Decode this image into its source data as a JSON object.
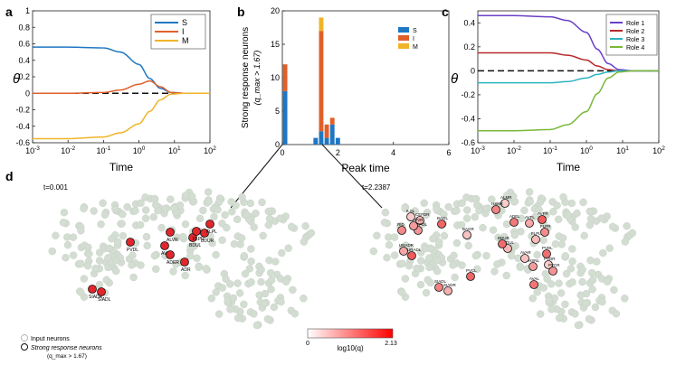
{
  "chart_data": [
    {
      "panel": "a",
      "type": "line",
      "xscale": "log",
      "xlim": [
        0.001,
        100
      ],
      "ylim": [
        -0.6,
        1
      ],
      "xlabel": "Time",
      "ylabel": "θ",
      "xticks": [
        "10^{-3}",
        "10^{-2}",
        "10^{-1}",
        "10^{0}",
        "10^{1}",
        "10^{2}"
      ],
      "yticks": [
        "-0.6",
        "-0.4",
        "-0.2",
        "0",
        "0.2",
        "0.4",
        "0.6",
        "0.8",
        "1"
      ],
      "legend_position": "top-right",
      "series": [
        {
          "name": "S",
          "color": "#1f77c4",
          "x": [
            0.001,
            0.01,
            0.1,
            0.3,
            1,
            2,
            4,
            8,
            20,
            100
          ],
          "y": [
            0.56,
            0.56,
            0.55,
            0.5,
            0.35,
            0.18,
            0.06,
            0.01,
            0,
            0
          ]
        },
        {
          "name": "I",
          "color": "#e0602a",
          "x": [
            0.001,
            0.01,
            0.1,
            0.3,
            1,
            2,
            4,
            8,
            20,
            100
          ],
          "y": [
            0,
            0,
            0.01,
            0.04,
            0.11,
            0.15,
            0.08,
            0.01,
            0,
            0
          ]
        },
        {
          "name": "M",
          "color": "#f0b429",
          "x": [
            0.001,
            0.01,
            0.1,
            0.3,
            1,
            2,
            4,
            8,
            20,
            100
          ],
          "y": [
            -0.55,
            -0.55,
            -0.53,
            -0.48,
            -0.37,
            -0.22,
            -0.08,
            -0.01,
            0,
            0
          ]
        }
      ]
    },
    {
      "panel": "b",
      "type": "bar",
      "stacked": true,
      "xlim": [
        0,
        6
      ],
      "ylim": [
        0,
        20
      ],
      "xlabel": "Peak time",
      "ylabel": "Strong response neurons",
      "ylabel2": "(q_max > 1.67)",
      "xticks": [
        "0",
        "2",
        "4",
        "6"
      ],
      "yticks": [
        "0",
        "5",
        "10",
        "15",
        "20"
      ],
      "legend_position": "top-right",
      "series_names": [
        "S",
        "I",
        "M"
      ],
      "series_colors": [
        "#1f77c4",
        "#e0602a",
        "#f0b429"
      ],
      "bars": [
        {
          "x": 0.1,
          "S": 8,
          "I": 4,
          "M": 0
        },
        {
          "x": 1.2,
          "S": 1,
          "I": 0,
          "M": 0
        },
        {
          "x": 1.4,
          "S": 2,
          "I": 15,
          "M": 2
        },
        {
          "x": 1.6,
          "S": 1,
          "I": 2,
          "M": 0
        },
        {
          "x": 1.8,
          "S": 3,
          "I": 1,
          "M": 0
        },
        {
          "x": 2.0,
          "S": 1,
          "I": 0,
          "M": 0
        }
      ]
    },
    {
      "panel": "c",
      "type": "line",
      "xscale": "log",
      "xlim": [
        0.001,
        100
      ],
      "ylim": [
        -0.6,
        0.5
      ],
      "xlabel": "Time",
      "ylabel": "θ",
      "xticks": [
        "10^{-3}",
        "10^{-2}",
        "10^{-1}",
        "10^{0}",
        "10^{1}",
        "10^{2}"
      ],
      "yticks": [
        "-0.6",
        "-0.4",
        "-0.2",
        "0",
        "0.2",
        "0.4"
      ],
      "legend_position": "top-right",
      "series": [
        {
          "name": "Role 1",
          "color": "#6a3fc8",
          "x": [
            0.001,
            0.01,
            0.1,
            0.3,
            1,
            2,
            4,
            8,
            20,
            100
          ],
          "y": [
            0.46,
            0.46,
            0.45,
            0.42,
            0.32,
            0.18,
            0.06,
            0.01,
            0,
            0
          ]
        },
        {
          "name": "Role 2",
          "color": "#b8282b",
          "x": [
            0.001,
            0.01,
            0.1,
            0.3,
            1,
            2,
            4,
            8,
            20,
            100
          ],
          "y": [
            0.15,
            0.15,
            0.15,
            0.13,
            0.09,
            0.04,
            0.01,
            0,
            0,
            0
          ]
        },
        {
          "name": "Role 3",
          "color": "#2ab3c0",
          "x": [
            0.001,
            0.01,
            0.1,
            0.3,
            1,
            2,
            4,
            8,
            20,
            100
          ],
          "y": [
            -0.1,
            -0.1,
            -0.1,
            -0.09,
            -0.06,
            -0.03,
            -0.01,
            0,
            0,
            0
          ]
        },
        {
          "name": "Role 4",
          "color": "#79b83a",
          "x": [
            0.001,
            0.01,
            0.1,
            0.3,
            1,
            2,
            4,
            8,
            20,
            100
          ],
          "y": [
            -0.5,
            -0.5,
            -0.49,
            -0.45,
            -0.34,
            -0.19,
            -0.06,
            -0.01,
            0,
            0
          ]
        }
      ]
    },
    {
      "panel": "d",
      "type": "scatter",
      "time_left": "t=0.001",
      "time_right": "t=2.2387",
      "colorbar_min": "0",
      "colorbar_max": "2.13",
      "colorbar_label": "log10(q)",
      "legend_input": "Input neurons",
      "legend_strong": "Strong response neurons",
      "legend_strong2": "(q_max > 1.67)",
      "left_highlight_labels": [
        "ALVR",
        "AVAL",
        "ADER",
        "BDUL",
        "BDUR",
        "FLPL",
        "FLPR",
        "PVDL",
        "ADR",
        "SIADR",
        "SIADL"
      ],
      "right_highlight_labels": [
        "ALMR",
        "HSNR",
        "CEFDR",
        "BAGL",
        "CEPDL",
        "BAGR",
        "ADEL",
        "AVFL",
        "AVFR",
        "FLPR",
        "FLPL",
        "PVDL",
        "HSNL",
        "PVDR",
        "SIADL",
        "SIADR",
        "PVCL",
        "PVCR",
        "AVAR",
        "AVAL",
        "URADR",
        "URADL",
        "RID",
        "BDUL",
        "BDUR",
        "CEPVR",
        "ILSL"
      ]
    }
  ],
  "panel_letters": {
    "a": "a",
    "b": "b",
    "c": "c",
    "d": "d"
  }
}
